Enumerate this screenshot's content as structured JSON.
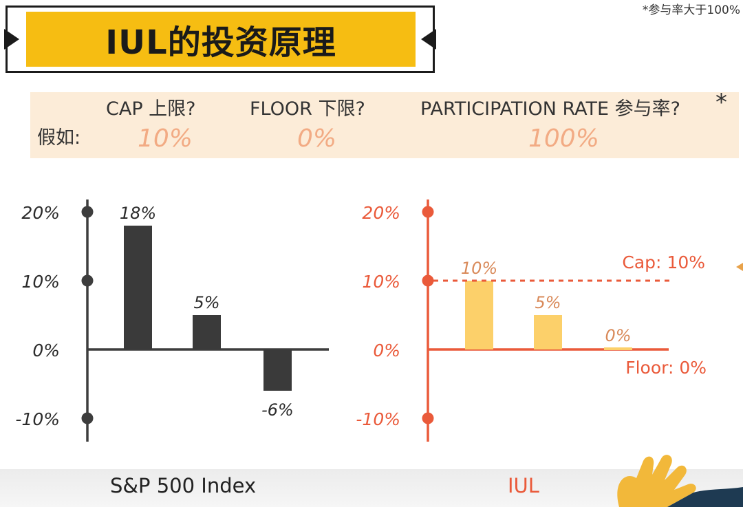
{
  "footnote": "*参与率大于100%",
  "title": "IUL的投资原理",
  "params": {
    "cap_label": "CAP 上限?",
    "floor_label": "FLOOR 下限?",
    "participation_label": "PARTICIPATION RATE 参与率?",
    "asterisk": "*",
    "assume_label": "假如:",
    "cap_value": "10%",
    "floor_value": "0%",
    "participation_value": "100%"
  },
  "colors": {
    "title_band": "#f6bd12",
    "param_band": "#fcecd8",
    "param_value": "#f2ab84",
    "index_axis": "#3d3d3d",
    "index_bar": "#3a3a3a",
    "iul_axis": "#ea5a3a",
    "iul_bar": "#fcd06a",
    "iul_label": "#d98a5a"
  },
  "chart_data": [
    {
      "type": "bar",
      "caption": "S&P 500 Index",
      "ylim": [
        -10,
        20
      ],
      "ticks": [
        "20%",
        "10%",
        "0%",
        "-10%"
      ],
      "values": [
        18,
        5,
        -6
      ],
      "labels": [
        "18%",
        "5%",
        "-6%"
      ]
    },
    {
      "type": "bar",
      "caption": "IUL",
      "ylim": [
        -10,
        20
      ],
      "ticks": [
        "20%",
        "10%",
        "0%",
        "-10%"
      ],
      "values": [
        10,
        5,
        0
      ],
      "labels": [
        "10%",
        "5%",
        "0%"
      ],
      "cap_line": {
        "value": 10,
        "label": "Cap: 10%"
      },
      "floor_line": {
        "value": 0,
        "label": "Floor: 0%"
      }
    }
  ]
}
